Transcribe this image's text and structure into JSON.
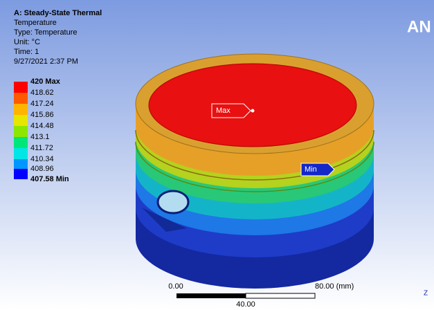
{
  "header": {
    "title": "A: Steady-State Thermal",
    "lines": [
      "Temperature",
      "Type: Temperature",
      "Unit: °C",
      "Time: 1",
      "9/27/2021 2:37 PM"
    ]
  },
  "legend": {
    "labels": [
      "420 Max",
      "418.62",
      "417.24",
      "415.86",
      "414.48",
      "413.1",
      "411.72",
      "410.34",
      "408.96",
      "407.58 Min"
    ]
  },
  "probes": {
    "max": "Max",
    "min": "Min"
  },
  "scale": {
    "start": "0.00",
    "end": "80.00 (mm)",
    "middle": "40.00"
  },
  "logo": "AN",
  "triad": "Z"
}
